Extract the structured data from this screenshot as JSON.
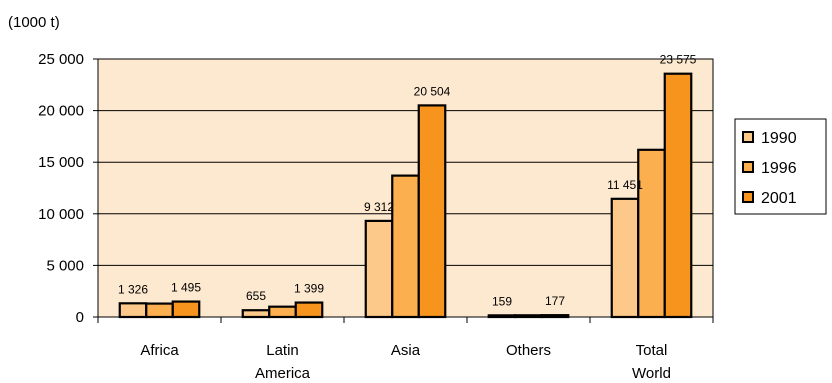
{
  "chart_data": {
    "type": "bar",
    "unit_label": "(1000 t)",
    "categories": [
      [
        "Africa"
      ],
      [
        "Latin",
        "America"
      ],
      [
        "Asia"
      ],
      [
        "Others"
      ],
      [
        "Total",
        "World"
      ]
    ],
    "series": [
      {
        "name": "1990",
        "color": "#fdc98b",
        "values": [
          1326,
          655,
          9312,
          159,
          11451
        ]
      },
      {
        "name": "1996",
        "color": "#fbaf4f",
        "values": [
          1300,
          1000,
          13700,
          165,
          16200
        ]
      },
      {
        "name": "2001",
        "color": "#f7941d",
        "values": [
          1495,
          1399,
          20504,
          177,
          23575
        ]
      }
    ],
    "data_labels": [
      {
        "category": 0,
        "series": 0,
        "text": "1 326"
      },
      {
        "category": 0,
        "series": 2,
        "text": "1 495"
      },
      {
        "category": 1,
        "series": 0,
        "text": "655"
      },
      {
        "category": 1,
        "series": 2,
        "text": "1 399"
      },
      {
        "category": 2,
        "series": 0,
        "text": "9 312"
      },
      {
        "category": 2,
        "series": 2,
        "text": "20 504"
      },
      {
        "category": 3,
        "series": 0,
        "text": "159"
      },
      {
        "category": 3,
        "series": 2,
        "text": "177"
      },
      {
        "category": 4,
        "series": 0,
        "text": "11 451"
      },
      {
        "category": 4,
        "series": 2,
        "text": "23 575"
      }
    ],
    "yticks": [
      {
        "value": 0,
        "label": "0"
      },
      {
        "value": 5000,
        "label": "5 000"
      },
      {
        "value": 10000,
        "label": "10 000"
      },
      {
        "value": 15000,
        "label": "15 000"
      },
      {
        "value": 20000,
        "label": "20 000"
      },
      {
        "value": 25000,
        "label": "25 000"
      }
    ],
    "ylim": [
      0,
      25000
    ],
    "grid": true,
    "legend_position": "right",
    "plot_background": "#fde9cf"
  }
}
